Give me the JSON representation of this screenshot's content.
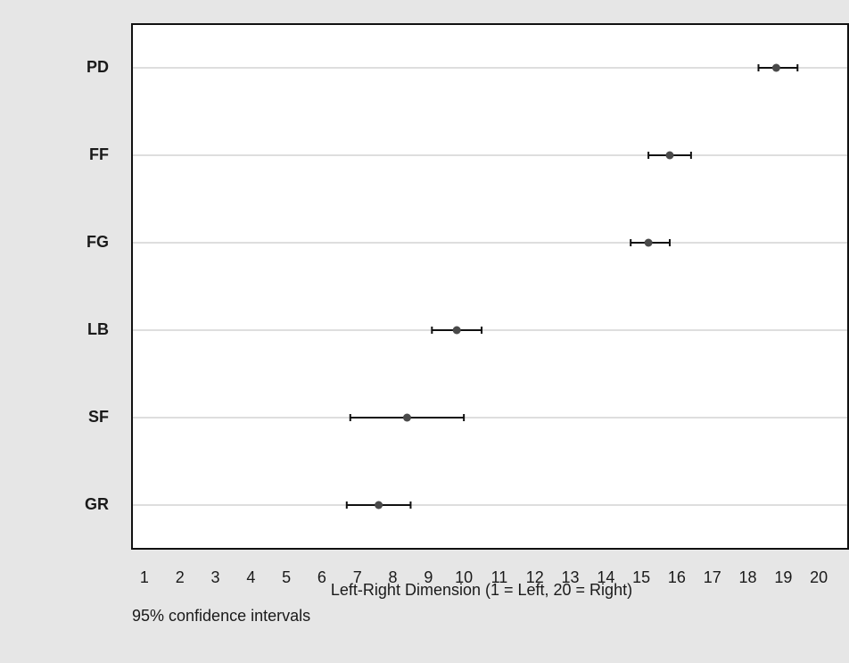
{
  "chart_data": {
    "type": "dot-interval",
    "categories": [
      "PD",
      "FF",
      "FG",
      "LB",
      "SF",
      "GR"
    ],
    "values": [
      18.8,
      15.8,
      15.2,
      9.8,
      8.4,
      7.6
    ],
    "low": [
      18.3,
      15.2,
      14.7,
      9.1,
      6.8,
      6.7
    ],
    "high": [
      19.4,
      16.4,
      15.8,
      10.5,
      10.0,
      8.5
    ],
    "color": "#4a4a4a",
    "xlim": [
      0.65,
      20.8
    ],
    "xticks": [
      1,
      2,
      3,
      4,
      5,
      6,
      7,
      8,
      9,
      10,
      11,
      12,
      13,
      14,
      15,
      16,
      17,
      18,
      19,
      20
    ],
    "x_label": "Left-Right Dimension (1 = Left, 20 = Right)",
    "note": "95% confidence intervals",
    "grid": true
  }
}
